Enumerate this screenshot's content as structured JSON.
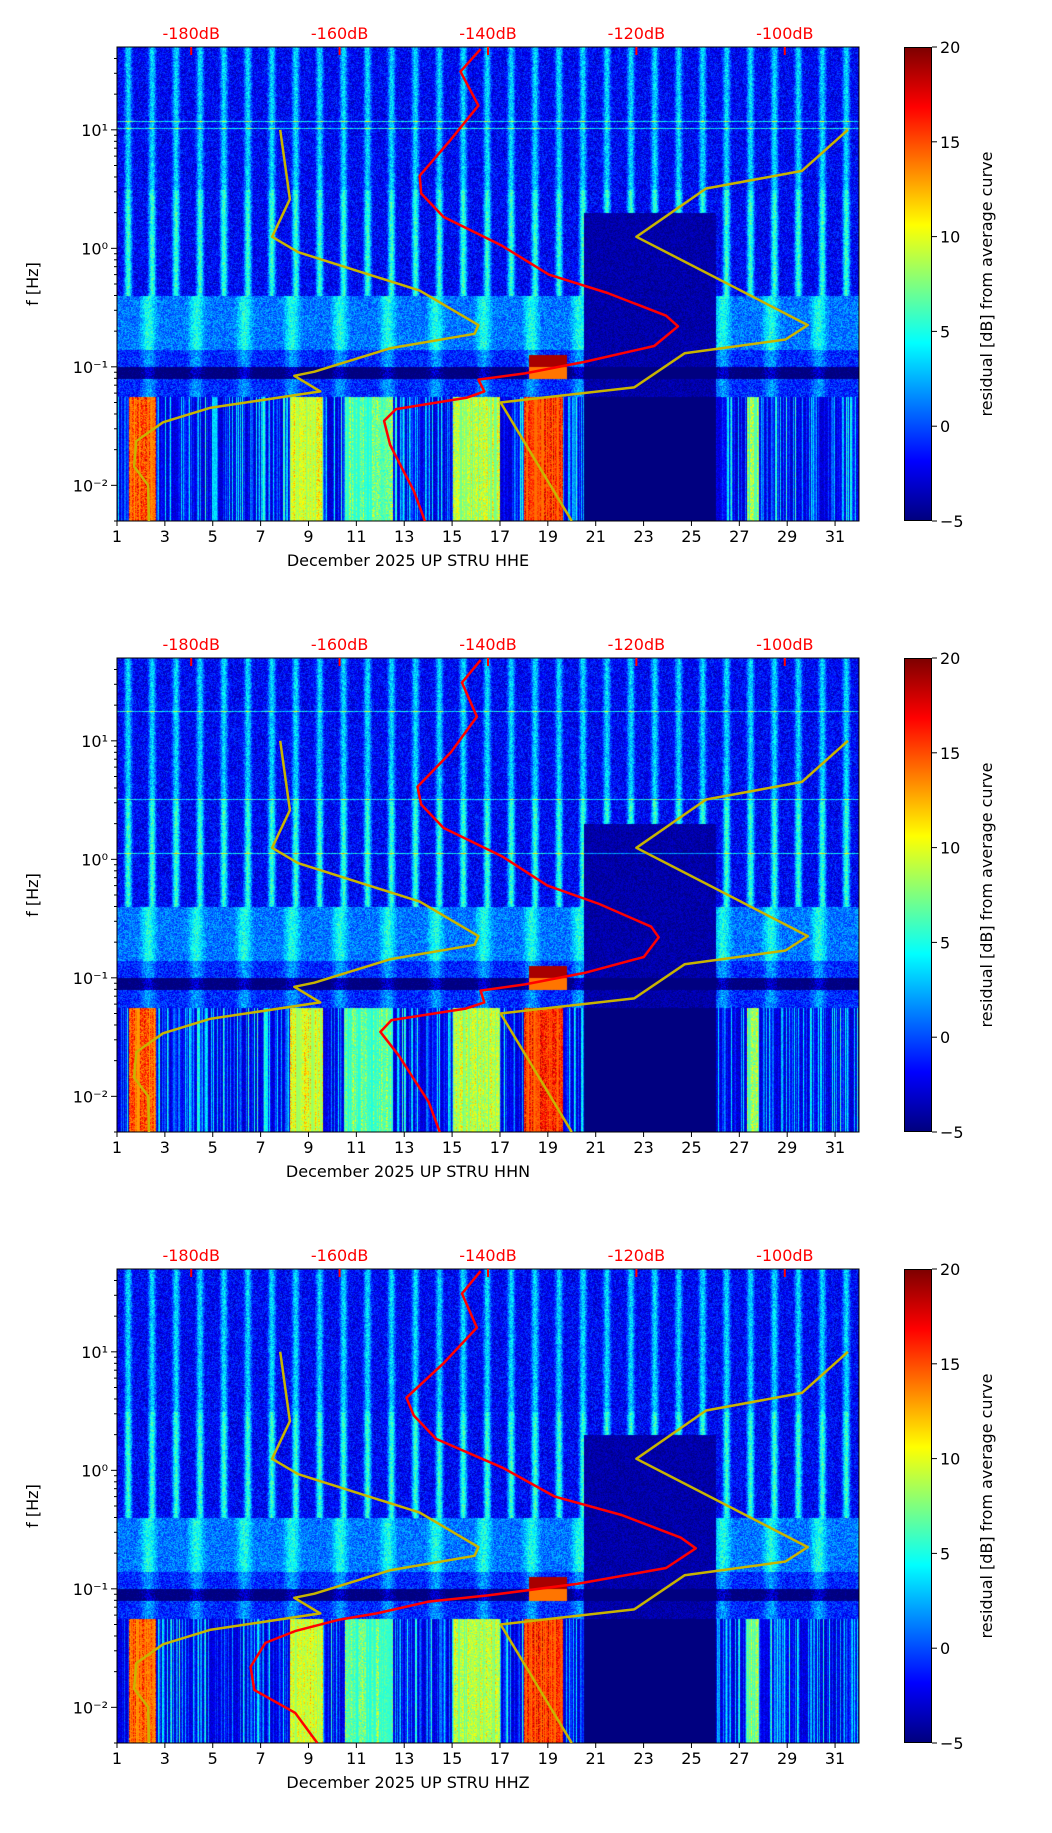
{
  "chart_data": [
    {
      "type": "heatmap",
      "title": "",
      "xlabel": "December 2025 UP STRU  HHE",
      "ylabel": "f [Hz]",
      "colorbar_label": "residual [dB] from average curve",
      "xlim": [
        1,
        32
      ],
      "ylim": [
        0.005,
        50
      ],
      "xscale": "linear",
      "yscale": "log",
      "clim": [
        -5,
        20
      ],
      "xticks": [
        1,
        3,
        5,
        7,
        9,
        11,
        13,
        15,
        17,
        19,
        21,
        23,
        25,
        27,
        29,
        31
      ],
      "yticks": [
        {
          "v": 0.01,
          "label": "10⁻²"
        },
        {
          "v": 0.1,
          "label": "10⁻¹"
        },
        {
          "v": 1,
          "label": "10⁰"
        },
        {
          "v": 10,
          "label": "10¹"
        }
      ],
      "cticks": [
        -5,
        0,
        5,
        10,
        15,
        20
      ],
      "top_axis": {
        "lim_db": [
          -190,
          -90
        ],
        "ticks": [
          -180,
          -160,
          -140,
          -120,
          -100
        ],
        "labels": [
          "-180dB",
          "-160dB",
          "-140dB",
          "-120dB",
          "-100dB"
        ],
        "color": "#ff0000"
      },
      "psd_curve": {
        "color": "#ff0000",
        "db": [
          -141,
          -143.7,
          -141.3,
          -145.2,
          -149.2,
          -149,
          -146,
          -138.1,
          -131.8,
          -123.9,
          -116,
          -114.4,
          -117.6,
          -127,
          -135,
          -141.3,
          -140.5,
          -142.8,
          -152.4,
          -154,
          -153.2,
          -151.6,
          -150,
          -148.5
        ],
        "f": [
          48,
          31,
          16,
          8,
          4.1,
          2.9,
          1.84,
          1.05,
          0.6,
          0.42,
          0.27,
          0.22,
          0.15,
          0.11,
          0.088,
          0.078,
          0.062,
          0.055,
          0.044,
          0.035,
          0.022,
          0.014,
          0.009,
          0.005
        ]
      },
      "nlnm": {
        "db": [
          -168,
          -166.7,
          -169.1,
          -165.6,
          -149.2,
          -141.3,
          -141.8,
          -153.1,
          -163.4,
          -166.1,
          -162.6,
          -177.5,
          -183.8,
          -187.4,
          -187.7,
          -185.8,
          -185.7
        ],
        "f": [
          10,
          2.6,
          1.25,
          0.93,
          0.44,
          0.225,
          0.19,
          0.144,
          0.091,
          0.084,
          0.062,
          0.045,
          0.034,
          0.0236,
          0.0144,
          0.01,
          0.005
        ]
      },
      "nhnm": {
        "db": [
          -91.5,
          -97.7,
          -110.6,
          -120,
          -96.9,
          -99.9,
          -113.5,
          -120.3,
          -138.3,
          -128.7
        ],
        "f": [
          10,
          4.5,
          3.2,
          1.25,
          0.225,
          0.17,
          0.13,
          0.067,
          0.05,
          0.005
        ]
      }
    },
    {
      "type": "heatmap",
      "title": "",
      "xlabel": "December 2025 UP STRU  HHN",
      "ylabel": "f [Hz]",
      "colorbar_label": "residual [dB] from average curve",
      "xlim": [
        1,
        32
      ],
      "ylim": [
        0.005,
        50
      ],
      "xscale": "linear",
      "yscale": "log",
      "clim": [
        -5,
        20
      ],
      "xticks": [
        1,
        3,
        5,
        7,
        9,
        11,
        13,
        15,
        17,
        19,
        21,
        23,
        25,
        27,
        29,
        31
      ],
      "yticks": [
        {
          "v": 0.01,
          "label": "10⁻²"
        },
        {
          "v": 0.1,
          "label": "10⁻¹"
        },
        {
          "v": 1,
          "label": "10⁰"
        },
        {
          "v": 10,
          "label": "10¹"
        }
      ],
      "cticks": [
        -5,
        0,
        5,
        10,
        15,
        20
      ],
      "top_axis": {
        "lim_db": [
          -190,
          -90
        ],
        "ticks": [
          -180,
          -160,
          -140,
          -120,
          -100
        ],
        "labels": [
          "-180dB",
          "-160dB",
          "-140dB",
          "-120dB",
          "-100dB"
        ],
        "color": "#ff0000"
      },
      "psd_curve": {
        "color": "#ff0000",
        "db": [
          -141,
          -143.5,
          -141.5,
          -145,
          -149.5,
          -149,
          -146,
          -138,
          -132,
          -125,
          -118,
          -117,
          -119,
          -127,
          -135,
          -141,
          -140.5,
          -143,
          -153,
          -154.5,
          -152,
          -150,
          -148,
          -146.5
        ],
        "f": [
          48,
          31,
          16,
          8,
          4.1,
          2.9,
          1.84,
          1.05,
          0.6,
          0.42,
          0.27,
          0.22,
          0.15,
          0.11,
          0.088,
          0.078,
          0.062,
          0.055,
          0.044,
          0.035,
          0.022,
          0.014,
          0.009,
          0.005
        ]
      },
      "nlnm": {
        "db": [
          -168,
          -166.7,
          -169.1,
          -165.6,
          -149.2,
          -141.3,
          -141.8,
          -153.1,
          -163.4,
          -166.1,
          -162.6,
          -177.5,
          -183.8,
          -187.4,
          -187.7,
          -185.8,
          -185.7
        ],
        "f": [
          10,
          2.6,
          1.25,
          0.93,
          0.44,
          0.225,
          0.19,
          0.144,
          0.091,
          0.084,
          0.062,
          0.045,
          0.034,
          0.0236,
          0.0144,
          0.01,
          0.005
        ]
      },
      "nhnm": {
        "db": [
          -91.5,
          -97.7,
          -110.6,
          -120,
          -96.9,
          -99.9,
          -113.5,
          -120.3,
          -138.3,
          -128.7
        ],
        "f": [
          10,
          4.5,
          3.2,
          1.25,
          0.225,
          0.17,
          0.13,
          0.067,
          0.05,
          0.005
        ]
      }
    },
    {
      "type": "heatmap",
      "title": "",
      "xlabel": "December 2025 UP STRU  HHZ",
      "ylabel": "f [Hz]",
      "colorbar_label": "residual [dB] from average curve",
      "xlim": [
        1,
        32
      ],
      "ylim": [
        0.005,
        50
      ],
      "xscale": "linear",
      "yscale": "log",
      "clim": [
        -5,
        20
      ],
      "xticks": [
        1,
        3,
        5,
        7,
        9,
        11,
        13,
        15,
        17,
        19,
        21,
        23,
        25,
        27,
        29,
        31
      ],
      "yticks": [
        {
          "v": 0.01,
          "label": "10⁻²"
        },
        {
          "v": 0.1,
          "label": "10⁻¹"
        },
        {
          "v": 1,
          "label": "10⁰"
        },
        {
          "v": 10,
          "label": "10¹"
        }
      ],
      "cticks": [
        -5,
        0,
        5,
        10,
        15,
        20
      ],
      "top_axis": {
        "lim_db": [
          -190,
          -90
        ],
        "ticks": [
          -180,
          -160,
          -140,
          -120,
          -100
        ],
        "labels": [
          "-180dB",
          "-160dB",
          "-140dB",
          "-120dB",
          "-100dB"
        ],
        "color": "#ff0000"
      },
      "psd_curve": {
        "color": "#ff0000",
        "db": [
          -141,
          -143.5,
          -141.5,
          -146,
          -151,
          -150,
          -147,
          -138,
          -131,
          -122,
          -114,
          -112,
          -116,
          -128,
          -140,
          -148,
          -155,
          -160,
          -166,
          -170,
          -172,
          -171.5,
          -166,
          -163
        ],
        "f": [
          48,
          31,
          16,
          8,
          4.1,
          2.9,
          1.84,
          1.05,
          0.6,
          0.42,
          0.27,
          0.22,
          0.15,
          0.11,
          0.088,
          0.078,
          0.062,
          0.055,
          0.044,
          0.035,
          0.022,
          0.014,
          0.009,
          0.005
        ]
      },
      "nlnm": {
        "db": [
          -168,
          -166.7,
          -169.1,
          -165.6,
          -149.2,
          -141.3,
          -141.8,
          -153.1,
          -163.4,
          -166.1,
          -162.6,
          -177.5,
          -183.8,
          -187.4,
          -187.7,
          -185.8,
          -185.7
        ],
        "f": [
          10,
          2.6,
          1.25,
          0.93,
          0.44,
          0.225,
          0.19,
          0.144,
          0.091,
          0.084,
          0.062,
          0.045,
          0.034,
          0.0236,
          0.0144,
          0.01,
          0.005
        ]
      },
      "nhnm": {
        "db": [
          -91.5,
          -97.7,
          -110.6,
          -120,
          -96.9,
          -99.9,
          -113.5,
          -120.3,
          -138.3,
          -128.7
        ],
        "f": [
          10,
          4.5,
          3.2,
          1.25,
          0.225,
          0.17,
          0.13,
          0.067,
          0.05,
          0.005
        ]
      }
    }
  ]
}
